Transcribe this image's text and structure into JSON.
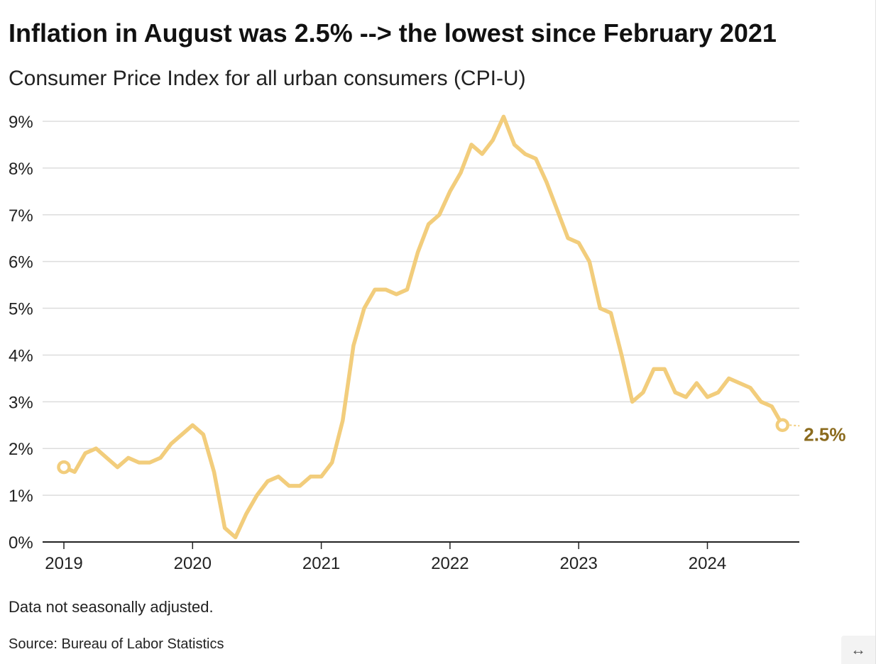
{
  "header": {
    "title": "Inflation in August was 2.5% --> the lowest since February 2021",
    "subtitle": "Consumer Price Index for all urban consumers (CPI-U)"
  },
  "footer": {
    "note": "Data not seasonally adjusted.",
    "source": "Source: Bureau of Labor Statistics"
  },
  "controls": {
    "expand_icon": "↔"
  },
  "colors": {
    "line": "#f2cd7c",
    "highlight_label": "#8b6b1e",
    "grid": "#dddddd",
    "axis": "#222222"
  },
  "chart_data": {
    "type": "line",
    "title": "Inflation in August was 2.5% --> the lowest since February 2021",
    "subtitle": "Consumer Price Index for all urban consumers (CPI-U)",
    "ylim": [
      0,
      9
    ],
    "yticks": [
      0,
      1,
      2,
      3,
      4,
      5,
      6,
      7,
      8,
      9
    ],
    "ytick_labels": [
      "0%",
      "1%",
      "2%",
      "3%",
      "4%",
      "5%",
      "6%",
      "7%",
      "8%",
      "9%"
    ],
    "xticks": [
      2019,
      2020,
      2021,
      2022,
      2023,
      2024
    ],
    "xtick_labels": [
      "2019",
      "2020",
      "2021",
      "2022",
      "2023",
      "2024"
    ],
    "grid": true,
    "start": "2019-01",
    "end_label": "2.5%",
    "series": [
      {
        "values": [
          1.6,
          1.5,
          1.9,
          2.0,
          1.8,
          1.6,
          1.8,
          1.7,
          1.7,
          1.8,
          2.1,
          2.3,
          2.5,
          2.3,
          1.5,
          0.3,
          0.1,
          0.6,
          1.0,
          1.3,
          1.4,
          1.2,
          1.2,
          1.4,
          1.4,
          1.7,
          2.6,
          4.2,
          5.0,
          5.4,
          5.4,
          5.3,
          5.4,
          6.2,
          6.8,
          7.0,
          7.5,
          7.9,
          8.5,
          8.3,
          8.6,
          9.1,
          8.5,
          8.3,
          8.2,
          7.7,
          7.1,
          6.5,
          6.4,
          6.0,
          5.0,
          4.9,
          4.0,
          3.0,
          3.2,
          3.7,
          3.7,
          3.2,
          3.1,
          3.4,
          3.1,
          3.2,
          3.5,
          3.4,
          3.3,
          3.0,
          2.9,
          2.5
        ]
      }
    ]
  }
}
